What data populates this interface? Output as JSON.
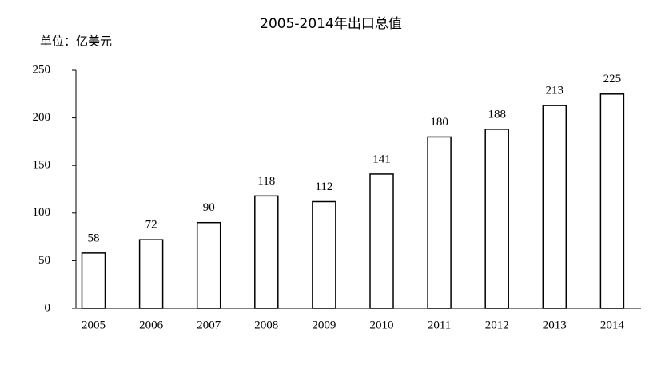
{
  "chart_data": {
    "type": "bar",
    "title": "2005-2014年出口总值",
    "subtitle": "单位：亿美元",
    "categories": [
      "2005",
      "2006",
      "2007",
      "2008",
      "2009",
      "2010",
      "2011",
      "2012",
      "2013",
      "2014"
    ],
    "values": [
      58,
      72,
      90,
      118,
      112,
      141,
      180,
      188,
      213,
      225
    ],
    "color": "#ffffff",
    "ylim": [
      0,
      250
    ],
    "yticks": [
      0,
      50,
      100,
      150,
      200,
      250
    ],
    "grid": false
  }
}
